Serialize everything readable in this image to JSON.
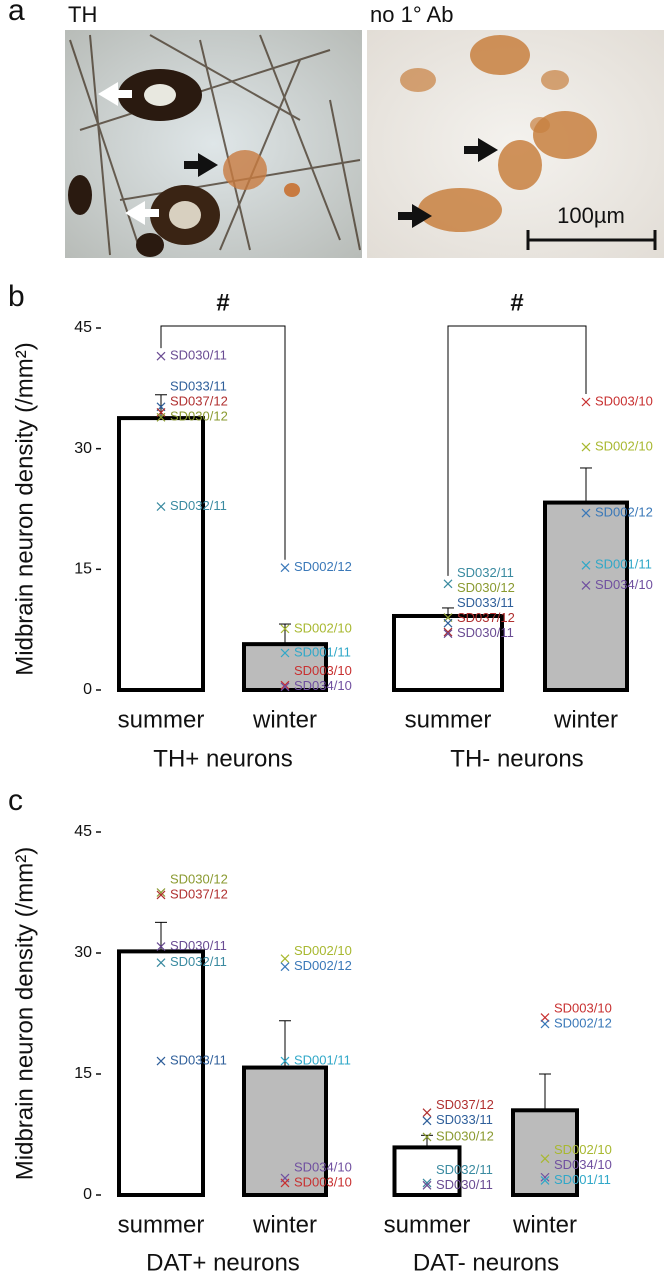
{
  "figure_a": {
    "panel": "a",
    "images": [
      {
        "label": "TH"
      },
      {
        "label": "no 1° Ab"
      }
    ],
    "scale_bar": "100µm"
  },
  "chart_data": [
    {
      "type": "bar",
      "panel": "b",
      "ylabel": "Midbrain neuron density (/mm²)",
      "ylim": [
        0,
        45
      ],
      "yticks": [
        0,
        15,
        30,
        45
      ],
      "groups": [
        {
          "name": "TH+ neurons",
          "significance": "#",
          "categories": [
            "summer",
            "winter"
          ],
          "values": [
            33.8,
            5.7
          ],
          "errors": [
            2.9,
            2.5
          ],
          "bar_colors": [
            "#ffffff",
            "#bbbbbb"
          ],
          "points": [
            [
              {
                "label": "SD030/11",
                "value": 41.5,
                "color": "#6a4c93"
              },
              {
                "label": "SD033/11",
                "value": 35.2,
                "color": "#2f5f9a"
              },
              {
                "label": "SD037/12",
                "value": 34.5,
                "color": "#b03030"
              },
              {
                "label": "SD030/12",
                "value": 33.9,
                "color": "#8a9a30"
              },
              {
                "label": "SD032/11",
                "value": 22.8,
                "color": "#3a8aa0"
              }
            ],
            [
              {
                "label": "SD002/12",
                "value": 15.2,
                "color": "#3a78b8"
              },
              {
                "label": "SD002/10",
                "value": 7.6,
                "color": "#a8b830"
              },
              {
                "label": "SD001/11",
                "value": 4.6,
                "color": "#30a8c8"
              },
              {
                "label": "SD003/10",
                "value": 0.6,
                "color": "#c83030"
              },
              {
                "label": "SD034/10",
                "value": 0.4,
                "color": "#7050a0"
              }
            ]
          ]
        },
        {
          "name": "TH- neurons",
          "significance": "#",
          "categories": [
            "summer",
            "winter"
          ],
          "values": [
            9.2,
            23.3
          ],
          "errors": [
            1.0,
            4.3
          ],
          "bar_colors": [
            "#ffffff",
            "#bbbbbb"
          ],
          "points": [
            [
              {
                "label": "SD032/11",
                "value": 13.2,
                "color": "#3a8aa0"
              },
              {
                "label": "SD030/12",
                "value": 9.0,
                "color": "#8a9a30"
              },
              {
                "label": "SD033/11",
                "value": 8.3,
                "color": "#2f5f9a"
              },
              {
                "label": "SD037/12",
                "value": 7.2,
                "color": "#b03030"
              },
              {
                "label": "SD030/11",
                "value": 7.0,
                "color": "#6a4c93"
              }
            ],
            [
              {
                "label": "SD003/10",
                "value": 35.8,
                "color": "#c83030"
              },
              {
                "label": "SD002/10",
                "value": 30.2,
                "color": "#a8b830"
              },
              {
                "label": "SD002/12",
                "value": 22.0,
                "color": "#3a78b8"
              },
              {
                "label": "SD001/11",
                "value": 15.5,
                "color": "#30a8c8"
              },
              {
                "label": "SD034/10",
                "value": 13.0,
                "color": "#7050a0"
              }
            ]
          ]
        }
      ]
    },
    {
      "type": "bar",
      "panel": "c",
      "ylabel": "Midbrain neuron density (/mm²)",
      "ylim": [
        0,
        45
      ],
      "yticks": [
        0,
        15,
        30,
        45
      ],
      "groups": [
        {
          "name": "DAT+ neurons",
          "categories": [
            "summer",
            "winter"
          ],
          "values": [
            30.2,
            15.8
          ],
          "errors": [
            3.6,
            5.8
          ],
          "bar_colors": [
            "#ffffff",
            "#bbbbbb"
          ],
          "points": [
            [
              {
                "label": "SD030/12",
                "value": 37.5,
                "color": "#8a9a30"
              },
              {
                "label": "SD037/12",
                "value": 37.2,
                "color": "#b03030"
              },
              {
                "label": "SD030/11",
                "value": 30.8,
                "color": "#6a4c93"
              },
              {
                "label": "SD032/11",
                "value": 28.8,
                "color": "#3a8aa0"
              },
              {
                "label": "SD033/11",
                "value": 16.6,
                "color": "#2f5f9a"
              }
            ],
            [
              {
                "label": "SD002/10",
                "value": 29.3,
                "color": "#a8b830"
              },
              {
                "label": "SD002/12",
                "value": 28.3,
                "color": "#3a78b8"
              },
              {
                "label": "SD001/11",
                "value": 16.6,
                "color": "#30a8c8"
              },
              {
                "label": "SD034/10",
                "value": 2.1,
                "color": "#7050a0"
              },
              {
                "label": "SD003/10",
                "value": 1.5,
                "color": "#c83030"
              }
            ]
          ]
        },
        {
          "name": "DAT- neurons",
          "categories": [
            "summer",
            "winter"
          ],
          "values": [
            5.9,
            10.5
          ],
          "errors": [
            1.5,
            4.5
          ],
          "bar_colors": [
            "#ffffff",
            "#bbbbbb"
          ],
          "points": [
            [
              {
                "label": "SD037/12",
                "value": 10.2,
                "color": "#b03030"
              },
              {
                "label": "SD033/11",
                "value": 9.2,
                "color": "#2f5f9a"
              },
              {
                "label": "SD030/12",
                "value": 7.2,
                "color": "#8a9a30"
              },
              {
                "label": "SD032/11",
                "value": 1.5,
                "color": "#3a8aa0"
              },
              {
                "label": "SD030/11",
                "value": 1.2,
                "color": "#6a4c93"
              }
            ],
            [
              {
                "label": "SD003/10",
                "value": 22.0,
                "color": "#c83030"
              },
              {
                "label": "SD002/12",
                "value": 21.2,
                "color": "#3a78b8"
              },
              {
                "label": "SD002/10",
                "value": 4.5,
                "color": "#a8b830"
              },
              {
                "label": "SD034/10",
                "value": 2.2,
                "color": "#7050a0"
              },
              {
                "label": "SD001/11",
                "value": 1.8,
                "color": "#30a8c8"
              }
            ]
          ]
        }
      ]
    }
  ]
}
